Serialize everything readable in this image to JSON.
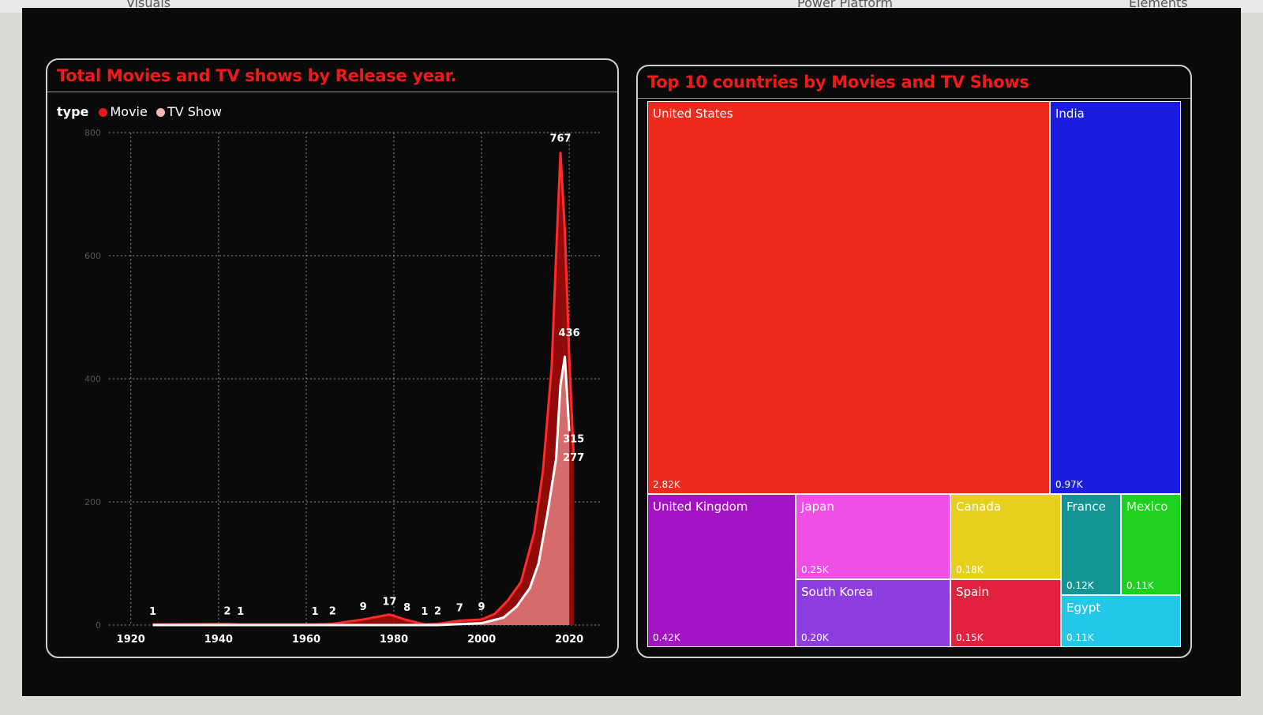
{
  "chrome": {
    "tab_left": "Visuals",
    "tab_mid": "Power Platform",
    "tab_right": "Elements"
  },
  "line_panel": {
    "title": "Total Movies and TV shows by Release year.",
    "legend_title": "type",
    "legend_items": [
      {
        "label": "Movie",
        "color": "#e31b1b"
      },
      {
        "label": "TV Show",
        "color": "#f3b8b8"
      }
    ]
  },
  "treemap_panel": {
    "title": "Top 10 countries by Movies and TV Shows"
  },
  "chart_data": [
    {
      "type": "area",
      "x_ticks": [
        "1920",
        "1940",
        "1960",
        "1980",
        "2000",
        "2020"
      ],
      "y_ticks": [
        "0",
        "200",
        "400",
        "600",
        "800"
      ],
      "xlim": [
        1915,
        2027
      ],
      "ylim": [
        0,
        800
      ],
      "grid": true,
      "legend_position": "top-left",
      "series": [
        {
          "name": "Movie",
          "color": "#e31b1b",
          "points": [
            [
              1925,
              1
            ],
            [
              1942,
              2
            ],
            [
              1945,
              1
            ],
            [
              1962,
              1
            ],
            [
              1966,
              2
            ],
            [
              1973,
              9
            ],
            [
              1979,
              17
            ],
            [
              1983,
              8
            ],
            [
              1987,
              1
            ],
            [
              1990,
              2
            ],
            [
              1995,
              7
            ],
            [
              2000,
              9
            ],
            [
              2003,
              18
            ],
            [
              2006,
              40
            ],
            [
              2009,
              70
            ],
            [
              2012,
              150
            ],
            [
              2014,
              250
            ],
            [
              2016,
              420
            ],
            [
              2017,
              600
            ],
            [
              2018,
              767
            ],
            [
              2019,
              640
            ],
            [
              2020,
              436
            ],
            [
              2021,
              277
            ]
          ]
        },
        {
          "name": "TV Show",
          "color": "#f3b8b8",
          "points": [
            [
              1925,
              0
            ],
            [
              1980,
              0
            ],
            [
              1990,
              0
            ],
            [
              2000,
              3
            ],
            [
              2005,
              12
            ],
            [
              2008,
              30
            ],
            [
              2011,
              60
            ],
            [
              2013,
              100
            ],
            [
              2015,
              180
            ],
            [
              2017,
              270
            ],
            [
              2018,
              390
            ],
            [
              2019,
              436
            ],
            [
              2020,
              315
            ]
          ]
        }
      ],
      "data_labels": [
        {
          "x": 1925,
          "y": 1,
          "text": "1"
        },
        {
          "x": 1942,
          "y": 2,
          "text": "2"
        },
        {
          "x": 1945,
          "y": 1,
          "text": "1"
        },
        {
          "x": 1962,
          "y": 1,
          "text": "1"
        },
        {
          "x": 1966,
          "y": 2,
          "text": "2"
        },
        {
          "x": 1973,
          "y": 9,
          "text": "9"
        },
        {
          "x": 1979,
          "y": 17,
          "text": "17"
        },
        {
          "x": 1983,
          "y": 8,
          "text": "8"
        },
        {
          "x": 1987,
          "y": 1,
          "text": "1"
        },
        {
          "x": 1990,
          "y": 2,
          "text": "2"
        },
        {
          "x": 1995,
          "y": 7,
          "text": "7"
        },
        {
          "x": 2000,
          "y": 9,
          "text": "9"
        },
        {
          "x": 2018,
          "y": 767,
          "text": "767"
        },
        {
          "x": 2020,
          "y": 436,
          "text": "436"
        },
        {
          "x": 2021,
          "y": 315,
          "text": "315"
        },
        {
          "x": 2021,
          "y": 277,
          "text": "277"
        }
      ]
    },
    {
      "type": "treemap",
      "items": [
        {
          "name": "United States",
          "value_label": "2.82K",
          "value": 2820,
          "color": "#ee2a1c"
        },
        {
          "name": "India",
          "value_label": "0.97K",
          "value": 970,
          "color": "#1d1de0"
        },
        {
          "name": "United Kingdom",
          "value_label": "0.42K",
          "value": 420,
          "color": "#a214c2"
        },
        {
          "name": "Japan",
          "value_label": "0.25K",
          "value": 250,
          "color": "#ef4fe6"
        },
        {
          "name": "South Korea",
          "value_label": "0.20K",
          "value": 200,
          "color": "#8d3de0"
        },
        {
          "name": "Canada",
          "value_label": "0.18K",
          "value": 180,
          "color": "#e6d01c"
        },
        {
          "name": "Spain",
          "value_label": "0.15K",
          "value": 150,
          "color": "#e0223e"
        },
        {
          "name": "France",
          "value_label": "0.12K",
          "value": 120,
          "color": "#169494"
        },
        {
          "name": "Mexico",
          "value_label": "0.11K",
          "value": 110,
          "color": "#1dd11d"
        },
        {
          "name": "Egypt",
          "value_label": "0.11K",
          "value": 110,
          "color": "#22c8e6"
        }
      ]
    }
  ]
}
